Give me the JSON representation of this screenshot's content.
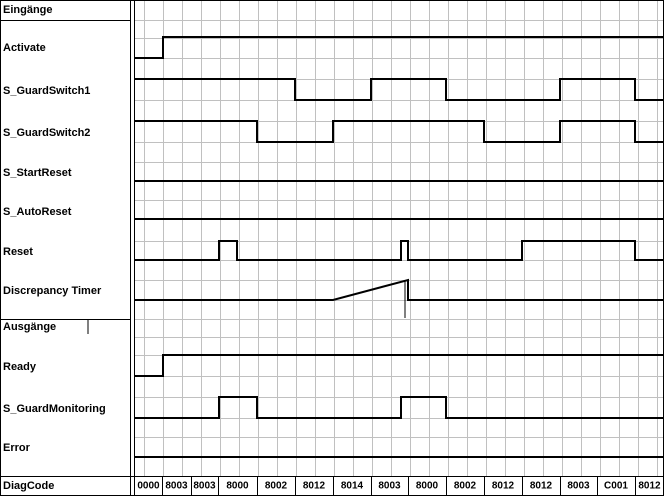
{
  "signals": {
    "inputs_header": "Eingänge",
    "inputs": [
      "Activate",
      "S_GuardSwitch1",
      "S_GuardSwitch2",
      "S_StartReset",
      "S_AutoReset",
      "Reset",
      "Discrepancy Timer"
    ],
    "outputs_header": "Ausgänge",
    "outputs": [
      "Ready",
      "S_GuardMonitoring",
      "Error"
    ]
  },
  "diag_code": {
    "label": "DiagCode",
    "values": [
      "0000",
      "8003",
      "8003",
      "8000",
      "8002",
      "8012",
      "8014",
      "8003",
      "8000",
      "8002",
      "8012",
      "8012",
      "8003",
      "C001",
      "8012"
    ]
  }
}
